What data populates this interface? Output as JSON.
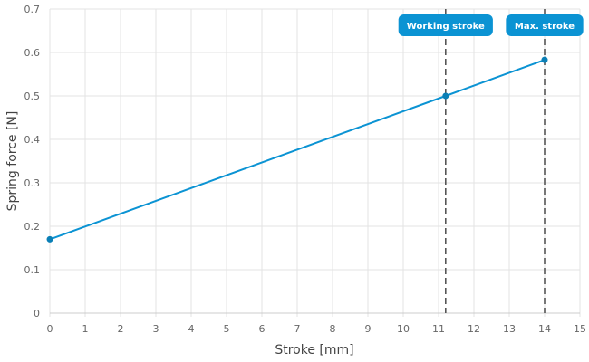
{
  "chart_data": {
    "type": "line",
    "xlabel": "Stroke [mm]",
    "ylabel": "Spring force [N]",
    "xlim": [
      0,
      15
    ],
    "ylim": [
      0,
      0.7
    ],
    "x_ticks": [
      0,
      1,
      2,
      3,
      4,
      5,
      6,
      7,
      8,
      9,
      10,
      11,
      12,
      13,
      14,
      15
    ],
    "y_ticks": [
      0,
      0.1,
      0.2,
      0.3,
      0.4,
      0.5,
      0.6,
      0.7
    ],
    "y_tick_labels": [
      "0",
      "0.1",
      "0.2",
      "0.3",
      "0.4",
      "0.5",
      "0.6",
      "0.7"
    ],
    "grid": true,
    "series": [
      {
        "color": "#0b93d3",
        "points": [
          {
            "x": 0,
            "y": 0.17
          },
          {
            "x": 11.2,
            "y": 0.5
          },
          {
            "x": 14,
            "y": 0.583
          }
        ]
      }
    ],
    "markers": [
      {
        "label": "Working stroke",
        "x": 11.2
      },
      {
        "label": "Max. stroke",
        "x": 14
      }
    ],
    "colors": {
      "line": "#0b93d3",
      "badge": "#0b93d3",
      "marker_line": "#555555",
      "grid": "#e3e3e3"
    }
  }
}
